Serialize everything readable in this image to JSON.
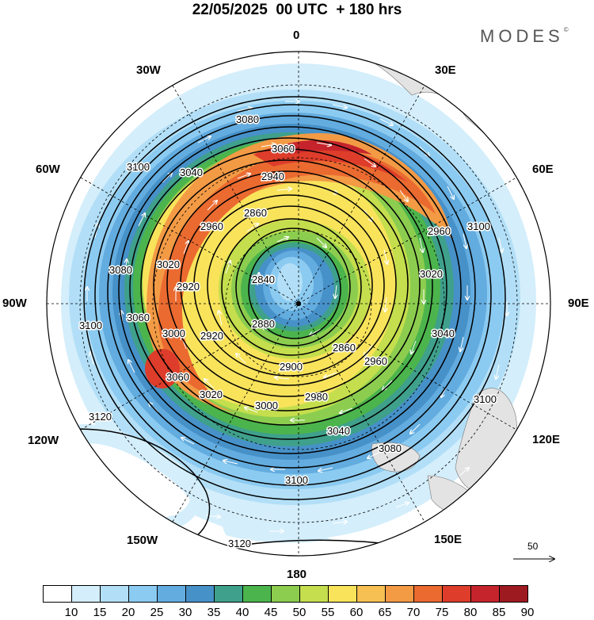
{
  "title": "22/05/2025  00 UTC  + 180 hrs",
  "brand": "MODES",
  "brand_mark": "©",
  "longitude_labels": {
    "lon_0": "0",
    "lon_30e": "30E",
    "lon_60e": "60E",
    "lon_90e": "90E",
    "lon_120e": "120E",
    "lon_150e": "150E",
    "lon_180": "180",
    "lon_150w": "150W",
    "lon_120w": "120W",
    "lon_90w": "90W",
    "lon_60w": "60W",
    "lon_30w": "30W"
  },
  "contour_labels": [
    "2840",
    "2860",
    "2880",
    "2900",
    "2920",
    "2940",
    "2960",
    "2980",
    "3000",
    "3020",
    "3040",
    "3060",
    "3080",
    "3100",
    "3120"
  ],
  "vector_scale": {
    "label": "50"
  },
  "colorbar": {
    "ticks": [
      "10",
      "15",
      "20",
      "25",
      "30",
      "35",
      "40",
      "45",
      "50",
      "55",
      "60",
      "65",
      "70",
      "75",
      "80",
      "85",
      "90"
    ],
    "colors": [
      "#ffffff",
      "#d4eefb",
      "#b2dff7",
      "#8ccbf1",
      "#63acdf",
      "#4791c9",
      "#3fa08b",
      "#4cb44c",
      "#8ccd4f",
      "#c4de4d",
      "#f8e35b",
      "#f7c052",
      "#f39a45",
      "#ea6a30",
      "#dd3d2a",
      "#c6242c",
      "#9e1a21"
    ]
  }
}
